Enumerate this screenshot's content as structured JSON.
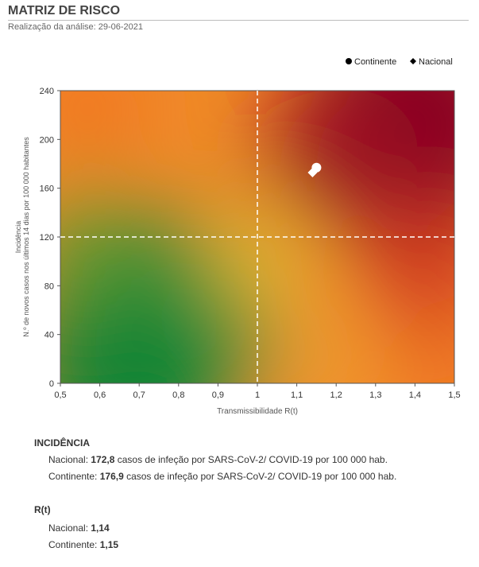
{
  "header": {
    "title": "MATRIZ DE RISCO",
    "subtitle": "Realização da análise: 29-06-2021"
  },
  "chart_data": {
    "type": "scatter",
    "title": "",
    "xlabel": "Transmissibilidade R(t)",
    "ylabel_lines": [
      "Incidência",
      "N.º de novos casos nos últimos 14 dias por 100 000 habitantes"
    ],
    "xlim": [
      0.5,
      1.5
    ],
    "ylim": [
      0,
      240
    ],
    "x_ticks": [
      "0,5",
      "0,6",
      "0,7",
      "0,8",
      "0,9",
      "1",
      "1,1",
      "1,2",
      "1,3",
      "1,4",
      "1,5"
    ],
    "y_ticks": [
      "0",
      "40",
      "80",
      "120",
      "160",
      "200",
      "240"
    ],
    "thresholds": {
      "x": 1,
      "y": 120
    },
    "legend_position": "top-right",
    "series": [
      {
        "name": "Continente",
        "marker": "circle",
        "x": 1.15,
        "y": 176.9,
        "color": "#ffffff"
      },
      {
        "name": "Nacional",
        "marker": "diamond",
        "x": 1.14,
        "y": 172.8,
        "color": "#ffffff"
      }
    ],
    "colors": {
      "low": "#0a8a3c",
      "medium": "#f5c030",
      "high": "#f26a1b",
      "very_high": "#8b0020"
    }
  },
  "incidencia": {
    "heading": "INCIDÊNCIA",
    "nacional_label": "Nacional: ",
    "nacional_value": "172,8",
    "nacional_rest": " casos de infeção por SARS-CoV-2/ COVID-19 por 100 000 hab.",
    "continente_label": "Continente: ",
    "continente_value": "176,9",
    "continente_rest": " casos de infeção por SARS-CoV-2/ COVID-19 por 100 000 hab."
  },
  "rt": {
    "heading": "R(t)",
    "nacional_label": "Nacional: ",
    "nacional_value": "1,14",
    "continente_label": "Continente: ",
    "continente_value": "1,15"
  }
}
